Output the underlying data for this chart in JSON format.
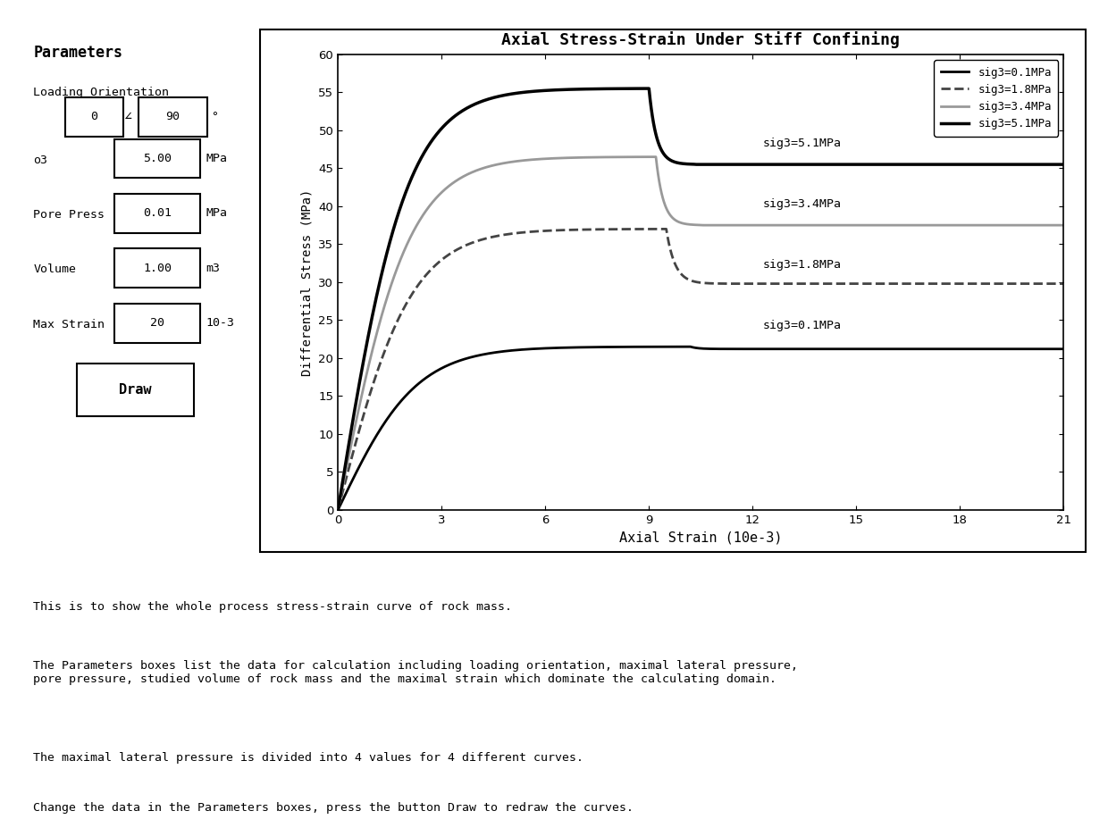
{
  "title": "Axial Stress-Strain Under Stiff Confining",
  "xlabel": "Axial Strain (10e-3)",
  "ylabel": "Differential Stress (MPa)",
  "xlim": [
    0,
    21
  ],
  "ylim": [
    0,
    60
  ],
  "xticks": [
    0,
    3,
    6,
    9,
    12,
    15,
    18,
    21
  ],
  "yticks": [
    0,
    5,
    10,
    15,
    20,
    25,
    30,
    35,
    40,
    45,
    50,
    55,
    60
  ],
  "curves": [
    {
      "label": "sig3=0.1MPa",
      "color": "#000000",
      "linewidth": 2.0,
      "linestyle": "-",
      "rise_end": 10.2,
      "peak_x": 10.2,
      "peak_y": 21.5,
      "drop_end": 11.5,
      "residual_y": 21.2,
      "annotation": "sig3=0.1MPa",
      "ann_x": 12.3,
      "ann_y": 23.5
    },
    {
      "label": "sig3=1.8MPa",
      "color": "#444444",
      "linewidth": 2.0,
      "linestyle": "--",
      "rise_end": 9.5,
      "peak_x": 9.5,
      "peak_y": 37.0,
      "drop_end": 11.0,
      "residual_y": 29.8,
      "annotation": "sig3=1.8MPa",
      "ann_x": 12.3,
      "ann_y": 31.5
    },
    {
      "label": "sig3=3.4MPa",
      "color": "#999999",
      "linewidth": 2.0,
      "linestyle": "-",
      "rise_end": 9.2,
      "peak_x": 9.2,
      "peak_y": 46.5,
      "drop_end": 10.5,
      "residual_y": 37.5,
      "annotation": "sig3=3.4MPa",
      "ann_x": 12.3,
      "ann_y": 39.5
    },
    {
      "label": "sig3=5.1MPa",
      "color": "#000000",
      "linewidth": 2.5,
      "linestyle": "-",
      "rise_end": 9.0,
      "peak_x": 9.0,
      "peak_y": 55.5,
      "drop_end": 10.3,
      "residual_y": 45.5,
      "annotation": "sig3=5.1MPa",
      "ann_x": 12.3,
      "ann_y": 47.5
    }
  ],
  "legend_entries": [
    {
      "label": "sig3=0.1MPa",
      "color": "#000000",
      "linewidth": 2.0,
      "linestyle": "-"
    },
    {
      "label": "sig3=1.8MPa",
      "color": "#444444",
      "linewidth": 2.0,
      "linestyle": "--"
    },
    {
      "label": "sig3=3.4MPa",
      "color": "#999999",
      "linewidth": 2.0,
      "linestyle": "-"
    },
    {
      "label": "sig3=5.1MPa",
      "color": "#000000",
      "linewidth": 2.5,
      "linestyle": "-"
    }
  ],
  "params_title": "Parameters",
  "loading_label": "Loading Orientation",
  "loading_val1": "0",
  "loading_val2": "90",
  "params_rows": [
    {
      "label": "o3",
      "value": "5.00",
      "unit": "MPa"
    },
    {
      "label": "Pore Press",
      "value": "0.01",
      "unit": "MPa"
    },
    {
      "label": "Volume",
      "value": "1.00",
      "unit": "m3"
    },
    {
      "label": "Max Strain",
      "value": "20",
      "unit": "10-3"
    }
  ],
  "button_label": "Draw",
  "description_lines": [
    "This is to show the whole process stress-strain curve of rock mass.",
    "The Parameters boxes list the data for calculation including loading orientation, maximal lateral pressure,\npore pressure, studied volume of rock mass and the maximal strain which dominate the calculating domain.",
    "The maximal lateral pressure is divided into 4 values for 4 different curves.",
    "Change the data in the Parameters boxes, press the button Draw to redraw the curves."
  ],
  "background_color": "#ffffff"
}
